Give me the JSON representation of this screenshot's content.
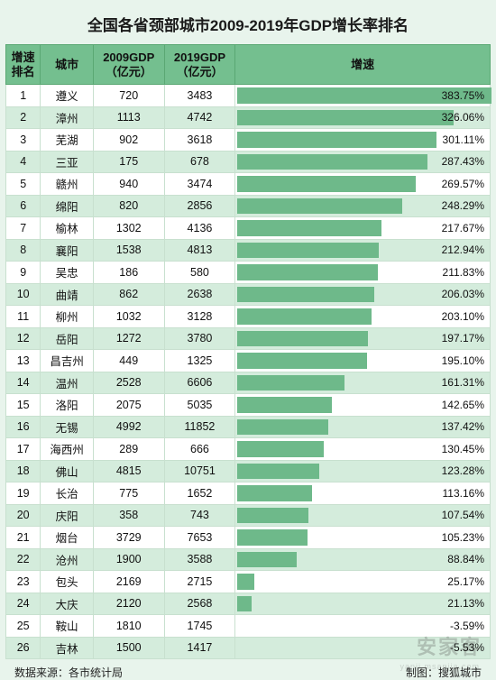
{
  "title": "全国各省颈部城市2009-2019年GDP增长率排名",
  "columns": {
    "rank": "增速\n排名",
    "city": "城市",
    "gdp2009": "2009GDP\n（亿元）",
    "gdp2019": "2019GDP\n（亿元）",
    "growth": "增速"
  },
  "col_widths": {
    "rank": 38,
    "city": 58,
    "gdp2009": 78,
    "gdp2019": 78,
    "growth": 280
  },
  "bar_color": "#6eb98a",
  "max_growth": 383.75,
  "rows": [
    {
      "rank": 1,
      "city": "遵义",
      "g09": 720,
      "g19": 3483,
      "pct": 383.75
    },
    {
      "rank": 2,
      "city": "漳州",
      "g09": 1113,
      "g19": 4742,
      "pct": 326.06
    },
    {
      "rank": 3,
      "city": "芜湖",
      "g09": 902,
      "g19": 3618,
      "pct": 301.11
    },
    {
      "rank": 4,
      "city": "三亚",
      "g09": 175,
      "g19": 678,
      "pct": 287.43
    },
    {
      "rank": 5,
      "city": "赣州",
      "g09": 940,
      "g19": 3474,
      "pct": 269.57
    },
    {
      "rank": 6,
      "city": "绵阳",
      "g09": 820,
      "g19": 2856,
      "pct": 248.29
    },
    {
      "rank": 7,
      "city": "榆林",
      "g09": 1302,
      "g19": 4136,
      "pct": 217.67
    },
    {
      "rank": 8,
      "city": "襄阳",
      "g09": 1538,
      "g19": 4813,
      "pct": 212.94
    },
    {
      "rank": 9,
      "city": "吴忠",
      "g09": 186,
      "g19": 580,
      "pct": 211.83
    },
    {
      "rank": 10,
      "city": "曲靖",
      "g09": 862,
      "g19": 2638,
      "pct": 206.03
    },
    {
      "rank": 11,
      "city": "柳州",
      "g09": 1032,
      "g19": 3128,
      "pct": 203.1
    },
    {
      "rank": 12,
      "city": "岳阳",
      "g09": 1272,
      "g19": 3780,
      "pct": 197.17
    },
    {
      "rank": 13,
      "city": "昌吉州",
      "g09": 449,
      "g19": 1325,
      "pct": 195.1
    },
    {
      "rank": 14,
      "city": "温州",
      "g09": 2528,
      "g19": 6606,
      "pct": 161.31
    },
    {
      "rank": 15,
      "city": "洛阳",
      "g09": 2075,
      "g19": 5035,
      "pct": 142.65
    },
    {
      "rank": 16,
      "city": "无锡",
      "g09": 4992,
      "g19": 11852,
      "pct": 137.42
    },
    {
      "rank": 17,
      "city": "海西州",
      "g09": 289,
      "g19": 666,
      "pct": 130.45
    },
    {
      "rank": 18,
      "city": "佛山",
      "g09": 4815,
      "g19": 10751,
      "pct": 123.28
    },
    {
      "rank": 19,
      "city": "长治",
      "g09": 775,
      "g19": 1652,
      "pct": 113.16
    },
    {
      "rank": 20,
      "city": "庆阳",
      "g09": 358,
      "g19": 743,
      "pct": 107.54
    },
    {
      "rank": 21,
      "city": "烟台",
      "g09": 3729,
      "g19": 7653,
      "pct": 105.23
    },
    {
      "rank": 22,
      "city": "沧州",
      "g09": 1900,
      "g19": 3588,
      "pct": 88.84
    },
    {
      "rank": 23,
      "city": "包头",
      "g09": 2169,
      "g19": 2715,
      "pct": 25.17
    },
    {
      "rank": 24,
      "city": "大庆",
      "g09": 2120,
      "g19": 2568,
      "pct": 21.13
    },
    {
      "rank": 25,
      "city": "鞍山",
      "g09": 1810,
      "g19": 1745,
      "pct": -3.59
    },
    {
      "rank": 26,
      "city": "吉林",
      "g09": 1500,
      "g19": 1417,
      "pct": -5.53
    }
  ],
  "footer": {
    "source_label": "数据来源：各市统计局",
    "credit_label": "制图：搜狐城市"
  },
  "watermark": {
    "main": "安家客",
    "sub": "yanji.msanjia.com"
  }
}
